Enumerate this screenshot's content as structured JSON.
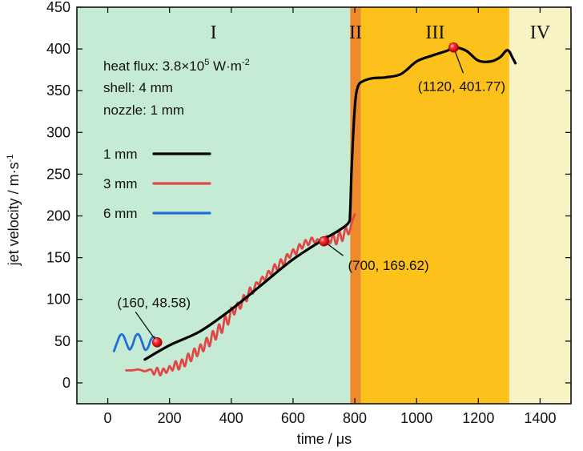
{
  "chart_data": {
    "type": "line",
    "xlabel": "time / μs",
    "ylabel": "jet velocity / m·s",
    "ylabel_sup": "-1",
    "xlim": [
      -100,
      1500
    ],
    "ylim": [
      -25,
      450
    ],
    "xticks": [
      0,
      200,
      400,
      600,
      800,
      1000,
      1200,
      1400
    ],
    "yticks": [
      0,
      50,
      100,
      150,
      200,
      250,
      300,
      350,
      400,
      450
    ],
    "grid": false,
    "legend_position": "left",
    "conditions": {
      "heat_flux_prefix": "heat flux: 3.8×10",
      "heat_flux_exp": "5",
      "heat_flux_unit": " W·m",
      "heat_flux_unit_exp": "-2",
      "shell": "shell: 4 mm",
      "nozzle": "nozzle: 1 mm"
    },
    "regions": [
      {
        "label": "I",
        "x_start": -100,
        "x_end": 785,
        "color": "#c6ebd4"
      },
      {
        "label": "II",
        "x_start": 785,
        "x_end": 820,
        "color": "#ef8a2c"
      },
      {
        "label": "III",
        "x_start": 820,
        "x_end": 1300,
        "color": "#fcc11a"
      },
      {
        "label": "IV",
        "x_start": 1300,
        "x_end": 1500,
        "color": "#f8f3c4"
      }
    ],
    "series": [
      {
        "name": "1 mm",
        "color": "#000000",
        "x": [
          120,
          200,
          300,
          400,
          500,
          600,
          700,
          750,
          780,
          785,
          790,
          800,
          810,
          830,
          860,
          900,
          950,
          1000,
          1050,
          1100,
          1120,
          1160,
          1200,
          1240,
          1270,
          1290,
          1300,
          1310,
          1320
        ],
        "y": [
          28,
          45,
          62,
          88,
          118,
          148,
          172,
          183,
          192,
          205,
          260,
          330,
          355,
          362,
          365,
          366,
          370,
          385,
          392,
          398,
          401.77,
          398,
          386,
          385,
          390,
          398,
          397,
          390,
          383
        ]
      },
      {
        "name": "3 mm",
        "color": "#e04848",
        "x": [
          60,
          80,
          100,
          120,
          140,
          150,
          160,
          170,
          180,
          190,
          200,
          210,
          220,
          230,
          240,
          250,
          260,
          270,
          280,
          290,
          300,
          310,
          320,
          330,
          340,
          350,
          360,
          370,
          380,
          390,
          400,
          410,
          420,
          430,
          440,
          450,
          460,
          470,
          480,
          490,
          500,
          510,
          520,
          530,
          540,
          550,
          560,
          570,
          580,
          590,
          600,
          610,
          620,
          630,
          640,
          650,
          660,
          670,
          680,
          690,
          700,
          710,
          720,
          730,
          740,
          750,
          760,
          770,
          780,
          790,
          800
        ],
        "y": [
          15,
          15,
          16,
          14,
          16,
          10,
          18,
          9,
          17,
          12,
          20,
          15,
          26,
          16,
          28,
          20,
          35,
          26,
          41,
          32,
          46,
          38,
          54,
          44,
          62,
          52,
          70,
          60,
          80,
          70,
          90,
          82,
          96,
          89,
          105,
          98,
          114,
          107,
          120,
          118,
          127,
          123,
          134,
          130,
          142,
          135,
          148,
          141,
          154,
          150,
          160,
          154,
          166,
          161,
          171,
          165,
          174,
          168,
          172,
          167,
          169.62,
          176,
          167,
          178,
          166,
          181,
          170,
          186,
          178,
          192,
          202
        ]
      },
      {
        "name": "6 mm",
        "color": "#1f6fd6",
        "x": [
          20,
          30,
          40,
          50,
          60,
          70,
          80,
          90,
          100,
          110,
          120,
          130,
          140,
          150,
          160
        ],
        "y": [
          38,
          48,
          57,
          57,
          48,
          40,
          45,
          56,
          58,
          50,
          40,
          42,
          52,
          55,
          48.58
        ]
      }
    ],
    "annotations": [
      {
        "text": "(160, 48.58)",
        "x": 160,
        "y": 48.58
      },
      {
        "text": "(700, 169.62)",
        "x": 700,
        "y": 169.62
      },
      {
        "text": "(1120, 401.77)",
        "x": 1120,
        "y": 401.77
      }
    ]
  }
}
